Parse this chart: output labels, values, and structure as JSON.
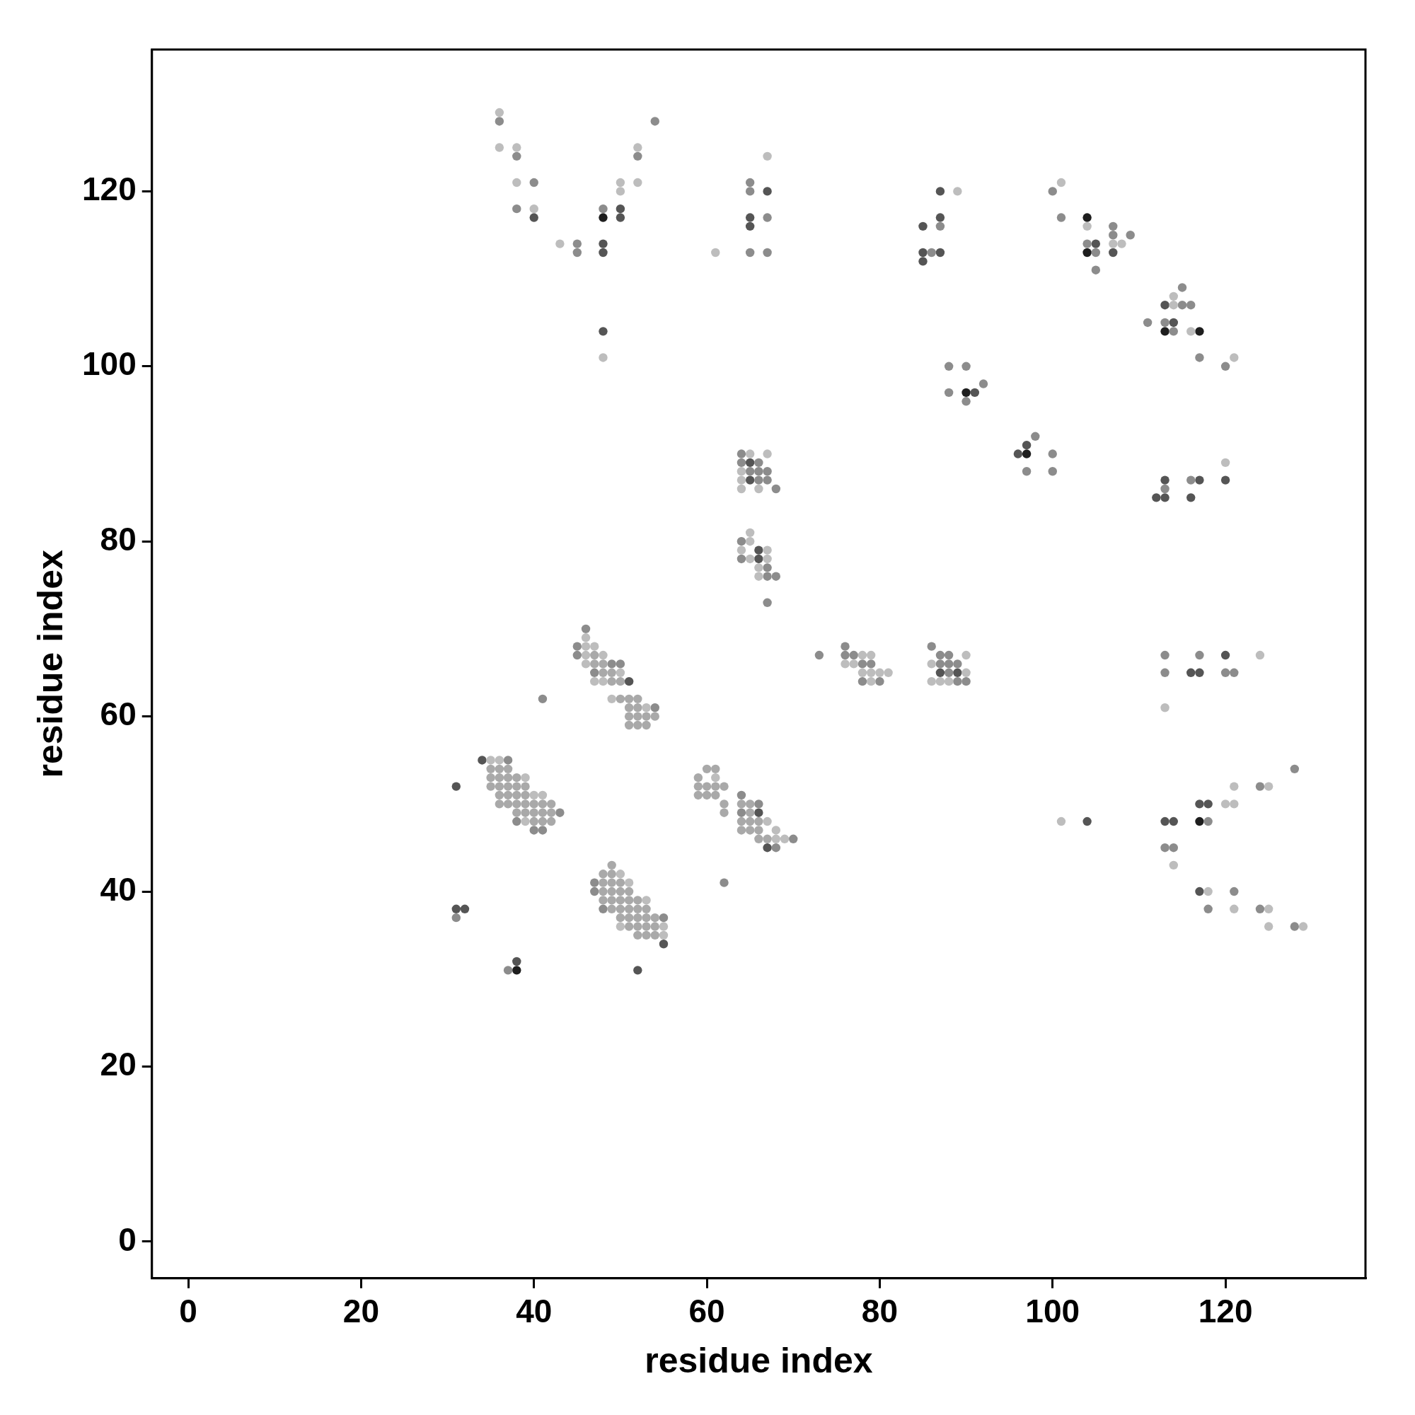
{
  "chart_data": {
    "type": "scatter",
    "xlabel": "residue index",
    "ylabel": "residue index",
    "xlim": [
      -4.2,
      136.2
    ],
    "ylim": [
      -4.2,
      136.2
    ],
    "xticks": [
      0,
      20,
      40,
      60,
      80,
      100,
      120
    ],
    "yticks": [
      0,
      20,
      40,
      60,
      80,
      100,
      120
    ],
    "grid": false,
    "legend": false,
    "marker": "circle",
    "series": [
      {
        "color": "#a9a9a9",
        "x": [
          47,
          47,
          48,
          48,
          49,
          49,
          50,
          50,
          51,
          52,
          51,
          52,
          51,
          52,
          53,
          54,
          51,
          52,
          53,
          35,
          36,
          37,
          35,
          36,
          37,
          38,
          35,
          36,
          37,
          38,
          39,
          36,
          37,
          38,
          39,
          36,
          37,
          38,
          39,
          40,
          41,
          42,
          38,
          39,
          40,
          41,
          42,
          40,
          41,
          42,
          49,
          48,
          49,
          48,
          49,
          50,
          48,
          49,
          50,
          51,
          48,
          49,
          50,
          51,
          52,
          49,
          50,
          51,
          52,
          53,
          50,
          51,
          52,
          53,
          54,
          51,
          52,
          53,
          54,
          52,
          53,
          54,
          60,
          61,
          59,
          59,
          60,
          61,
          62,
          59,
          60,
          61,
          62,
          62,
          64,
          65,
          65,
          64,
          65,
          66,
          64,
          65,
          66,
          66,
          67
        ],
        "values": [
          67,
          66,
          66,
          65,
          65,
          64,
          64,
          62,
          62,
          62,
          61,
          61,
          60,
          60,
          60,
          60,
          59,
          59,
          59,
          54,
          54,
          54,
          53,
          53,
          53,
          53,
          52,
          52,
          52,
          52,
          52,
          51,
          51,
          51,
          51,
          50,
          50,
          50,
          50,
          50,
          50,
          50,
          49,
          49,
          49,
          49,
          49,
          48,
          48,
          48,
          43,
          42,
          42,
          41,
          41,
          41,
          40,
          40,
          40,
          40,
          39,
          39,
          39,
          39,
          39,
          38,
          38,
          38,
          38,
          38,
          37,
          37,
          37,
          37,
          37,
          36,
          36,
          36,
          36,
          35,
          35,
          35,
          54,
          54,
          53,
          52,
          52,
          52,
          52,
          51,
          51,
          51,
          50,
          49,
          50,
          50,
          49,
          48,
          48,
          48,
          47,
          47,
          47,
          46,
          46
        ]
      },
      {
        "color": "#bdbdbd",
        "x": [
          36,
          36,
          38,
          38,
          40,
          43,
          52,
          50,
          50,
          52,
          61,
          48,
          67,
          89,
          101,
          104,
          107,
          108,
          114,
          114,
          116,
          121,
          120,
          124,
          113,
          101,
          121,
          125,
          120,
          121,
          114,
          118,
          121,
          125,
          129,
          125,
          65,
          67,
          64,
          64,
          64,
          66,
          65,
          65,
          64,
          67,
          65,
          67,
          66,
          66,
          78,
          79,
          76,
          77,
          78,
          79,
          80,
          81,
          79,
          90,
          86,
          90,
          86,
          87,
          88,
          67,
          68,
          68,
          69,
          61,
          46,
          46,
          47,
          46,
          48,
          46,
          50,
          47,
          48,
          49,
          53,
          35,
          36,
          39,
          40,
          41,
          39,
          50,
          51,
          53,
          50,
          55,
          55
        ],
        "values": [
          129,
          125,
          125,
          121,
          118,
          114,
          125,
          121,
          120,
          121,
          113,
          101,
          124,
          120,
          121,
          116,
          114,
          114,
          108,
          107,
          104,
          101,
          89,
          67,
          61,
          48,
          52,
          52,
          50,
          50,
          43,
          40,
          38,
          36,
          36,
          38,
          90,
          90,
          88,
          87,
          86,
          86,
          81,
          80,
          79,
          79,
          78,
          78,
          77,
          76,
          67,
          67,
          66,
          66,
          65,
          65,
          65,
          65,
          64,
          67,
          66,
          65,
          64,
          64,
          64,
          48,
          47,
          46,
          46,
          53,
          69,
          68,
          68,
          67,
          67,
          66,
          65,
          64,
          64,
          62,
          61,
          55,
          55,
          53,
          51,
          51,
          48,
          42,
          41,
          39,
          36,
          36,
          35
        ]
      },
      {
        "color": "#8c8c8c",
        "x": [
          36,
          38,
          40,
          38,
          45,
          45,
          48,
          52,
          54,
          65,
          65,
          67,
          65,
          67,
          86,
          87,
          100,
          101,
          105,
          105,
          107,
          107,
          109,
          115,
          115,
          116,
          111,
          113,
          117,
          120,
          98,
          100,
          97,
          100,
          113,
          116,
          88,
          90,
          88,
          92,
          113,
          117,
          113,
          121,
          128,
          124,
          118,
          113,
          114,
          121,
          118,
          124,
          128,
          46,
          45,
          45,
          50,
          41,
          37,
          38,
          40,
          41,
          43,
          55,
          31,
          37,
          62,
          64,
          66,
          64,
          64,
          64,
          66,
          65,
          66,
          67,
          66,
          67,
          68,
          64,
          64,
          67,
          67,
          68,
          67,
          73,
          76,
          76,
          77,
          78,
          79,
          78,
          80,
          86,
          87,
          88,
          87,
          88,
          89,
          88,
          89,
          90,
          70,
          68,
          54,
          49,
          104,
          114,
          120,
          90,
          47,
          47,
          48,
          47
        ],
        "values": [
          128,
          124,
          121,
          118,
          114,
          113,
          118,
          124,
          128,
          121,
          120,
          117,
          113,
          113,
          113,
          116,
          120,
          117,
          113,
          111,
          116,
          115,
          115,
          109,
          107,
          107,
          105,
          105,
          101,
          100,
          92,
          90,
          88,
          88,
          86,
          87,
          100,
          100,
          97,
          98,
          67,
          67,
          65,
          65,
          54,
          52,
          48,
          45,
          45,
          40,
          38,
          38,
          36,
          70,
          68,
          67,
          66,
          62,
          55,
          48,
          47,
          47,
          49,
          37,
          37,
          31,
          41,
          51,
          50,
          49,
          90,
          89,
          89,
          88,
          88,
          88,
          87,
          87,
          86,
          80,
          78,
          77,
          76,
          76,
          73,
          67,
          68,
          67,
          67,
          66,
          66,
          64,
          64,
          68,
          67,
          67,
          66,
          66,
          66,
          65,
          64,
          64,
          46,
          45,
          61,
          66,
          114,
          104,
          65,
          96,
          41,
          40,
          38,
          65
        ]
      },
      {
        "color": "#555555",
        "x": [
          40,
          50,
          50,
          48,
          48,
          48,
          67,
          65,
          65,
          87,
          85,
          87,
          85,
          87,
          85,
          105,
          107,
          113,
          114,
          97,
          96,
          91,
          120,
          113,
          112,
          113,
          117,
          116,
          120,
          116,
          117,
          117,
          118,
          113,
          114,
          104,
          117,
          65,
          65,
          66,
          66,
          66,
          67,
          87,
          89,
          51,
          34,
          31,
          31,
          32,
          38,
          52,
          55
        ],
        "values": [
          117,
          118,
          117,
          114,
          113,
          104,
          120,
          117,
          116,
          120,
          116,
          117,
          113,
          113,
          112,
          114,
          113,
          107,
          105,
          91,
          90,
          97,
          87,
          87,
          85,
          85,
          87,
          85,
          67,
          65,
          65,
          50,
          50,
          48,
          48,
          48,
          40,
          89,
          87,
          79,
          78,
          49,
          45,
          65,
          65,
          64,
          55,
          52,
          38,
          38,
          32,
          31,
          34
        ]
      },
      {
        "color": "#1e1e1e",
        "x": [
          48,
          104,
          104,
          113,
          117,
          97,
          90,
          117,
          38
        ],
        "values": [
          117,
          117,
          113,
          104,
          104,
          90,
          97,
          48,
          31
        ]
      }
    ]
  }
}
